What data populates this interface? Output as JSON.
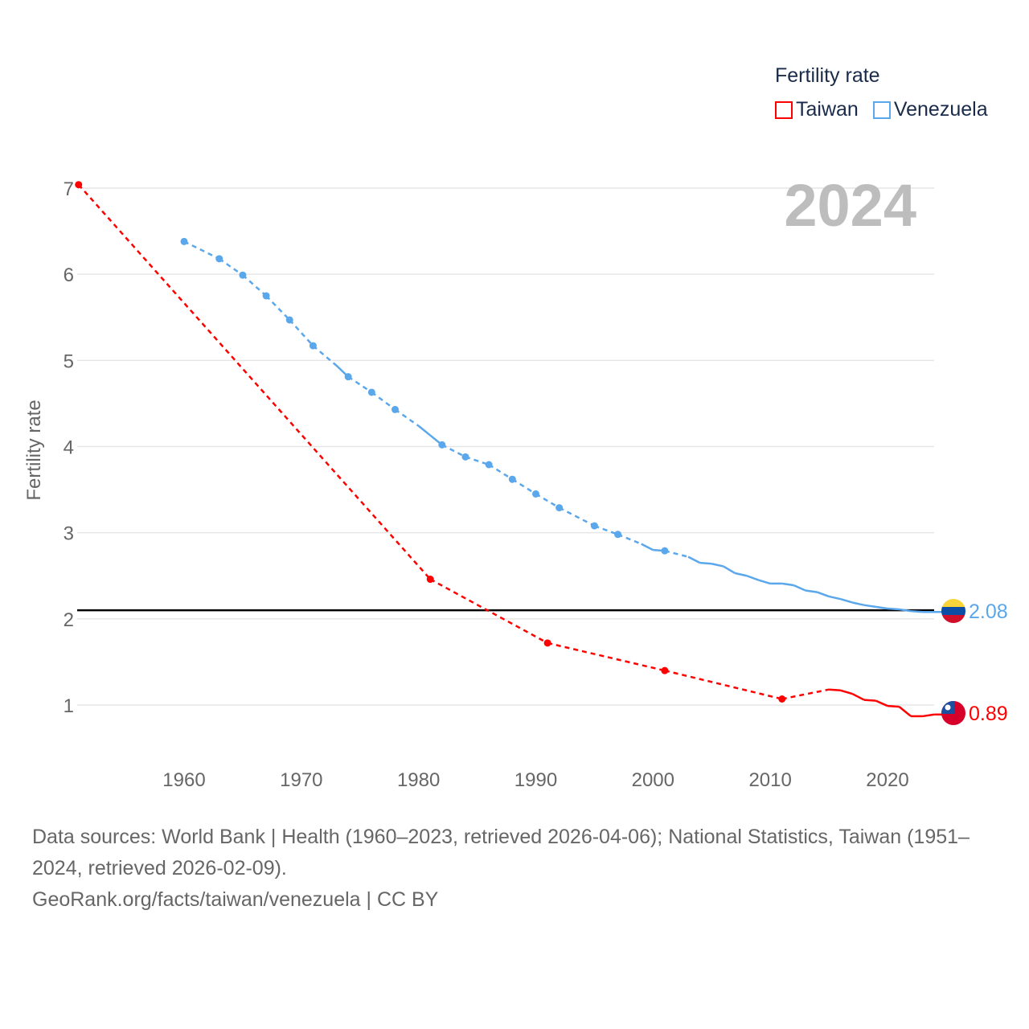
{
  "legend": {
    "title": "Fertility rate",
    "items": [
      {
        "label": "Taiwan",
        "color": "#ff0000"
      },
      {
        "label": "Venezuela",
        "color": "#5ba7ec"
      }
    ]
  },
  "chart_data": {
    "type": "line",
    "title": "Fertility rate",
    "year_label": "2024",
    "xlabel": "",
    "ylabel": "Fertility rate",
    "xlim": [
      1951,
      2024
    ],
    "ylim": [
      0.5,
      7
    ],
    "xticks": [
      "1960",
      "1970",
      "1980",
      "1990",
      "2000",
      "2010",
      "2020"
    ],
    "yticks": [
      "1",
      "2",
      "3",
      "4",
      "5",
      "6",
      "7"
    ],
    "grid": true,
    "reference_line": 2.1,
    "series": [
      {
        "name": "Taiwan",
        "color": "#ff0000",
        "end_label": "0.89",
        "x": [
          1951,
          1981,
          1991,
          2001,
          2011,
          2015,
          2016,
          2017,
          2018,
          2019,
          2020,
          2021,
          2022,
          2023,
          2024
        ],
        "y": [
          7.04,
          2.46,
          1.72,
          1.4,
          1.07,
          1.18,
          1.17,
          1.13,
          1.06,
          1.05,
          0.99,
          0.98,
          0.87,
          0.87,
          0.89
        ]
      },
      {
        "name": "Venezuela",
        "color": "#5ba7ec",
        "end_label": "2.08",
        "x": [
          1960,
          1963,
          1965,
          1967,
          1969,
          1971,
          1973,
          1974,
          1976,
          1978,
          1980,
          1981,
          1982,
          1984,
          1986,
          1988,
          1990,
          1992,
          1995,
          1997,
          1999,
          2000,
          2001,
          2003,
          2004,
          2005,
          2006,
          2007,
          2008,
          2009,
          2010,
          2011,
          2012,
          2013,
          2014,
          2015,
          2016,
          2017,
          2018,
          2019,
          2020,
          2021,
          2022,
          2023
        ],
        "y": [
          6.38,
          6.18,
          5.99,
          5.75,
          5.47,
          5.17,
          4.94,
          4.81,
          4.63,
          4.43,
          4.24,
          4.13,
          4.02,
          3.88,
          3.79,
          3.62,
          3.45,
          3.29,
          3.08,
          2.98,
          2.87,
          2.8,
          2.79,
          2.72,
          2.65,
          2.64,
          2.61,
          2.53,
          2.5,
          2.45,
          2.41,
          2.41,
          2.39,
          2.33,
          2.31,
          2.26,
          2.23,
          2.19,
          2.16,
          2.14,
          2.12,
          2.11,
          2.09,
          2.08
        ]
      }
    ]
  },
  "sources": {
    "line1": "Data sources: World Bank | Health (1960–2023, retrieved 2026-04-06); National Statistics, Taiwan (1951–2024, retrieved 2026-02-09).",
    "line2": "GeoRank.org/facts/taiwan/venezuela | CC BY"
  }
}
